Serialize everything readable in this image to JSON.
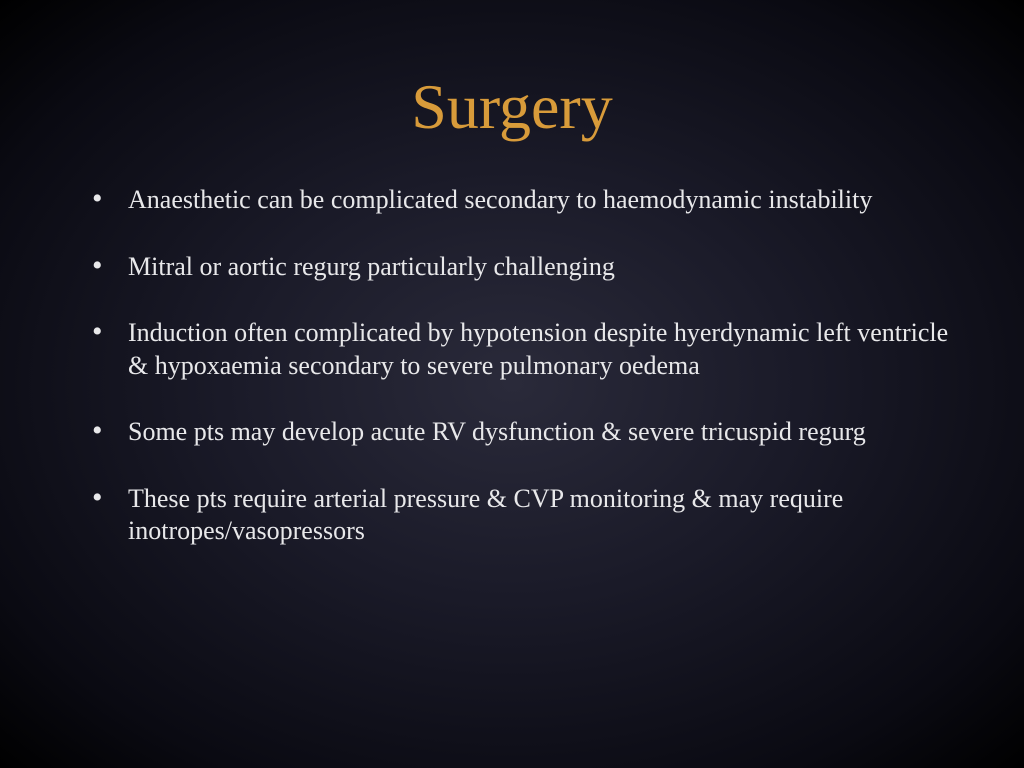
{
  "slide": {
    "title": "Surgery",
    "title_color": "#d89b3a",
    "title_fontsize": 64,
    "body_color": "#e8e8ea",
    "body_fontsize": 26,
    "background_gradient": {
      "center": "#2a2a3a",
      "mid": "#1a1a28",
      "outer": "#0a0a12",
      "edge": "#000000"
    },
    "font_family": "Times New Roman",
    "bullets": [
      "Anaesthetic can be complicated secondary to haemodynamic instability",
      "Mitral or aortic regurg particularly challenging",
      "Induction often complicated by hypotension despite hyerdynamic left ventricle & hypoxaemia secondary to severe pulmonary oedema",
      "Some pts may develop acute RV dysfunction & severe tricuspid regurg",
      "These pts require arterial pressure & CVP monitoring & may require inotropes/vasopressors"
    ]
  }
}
